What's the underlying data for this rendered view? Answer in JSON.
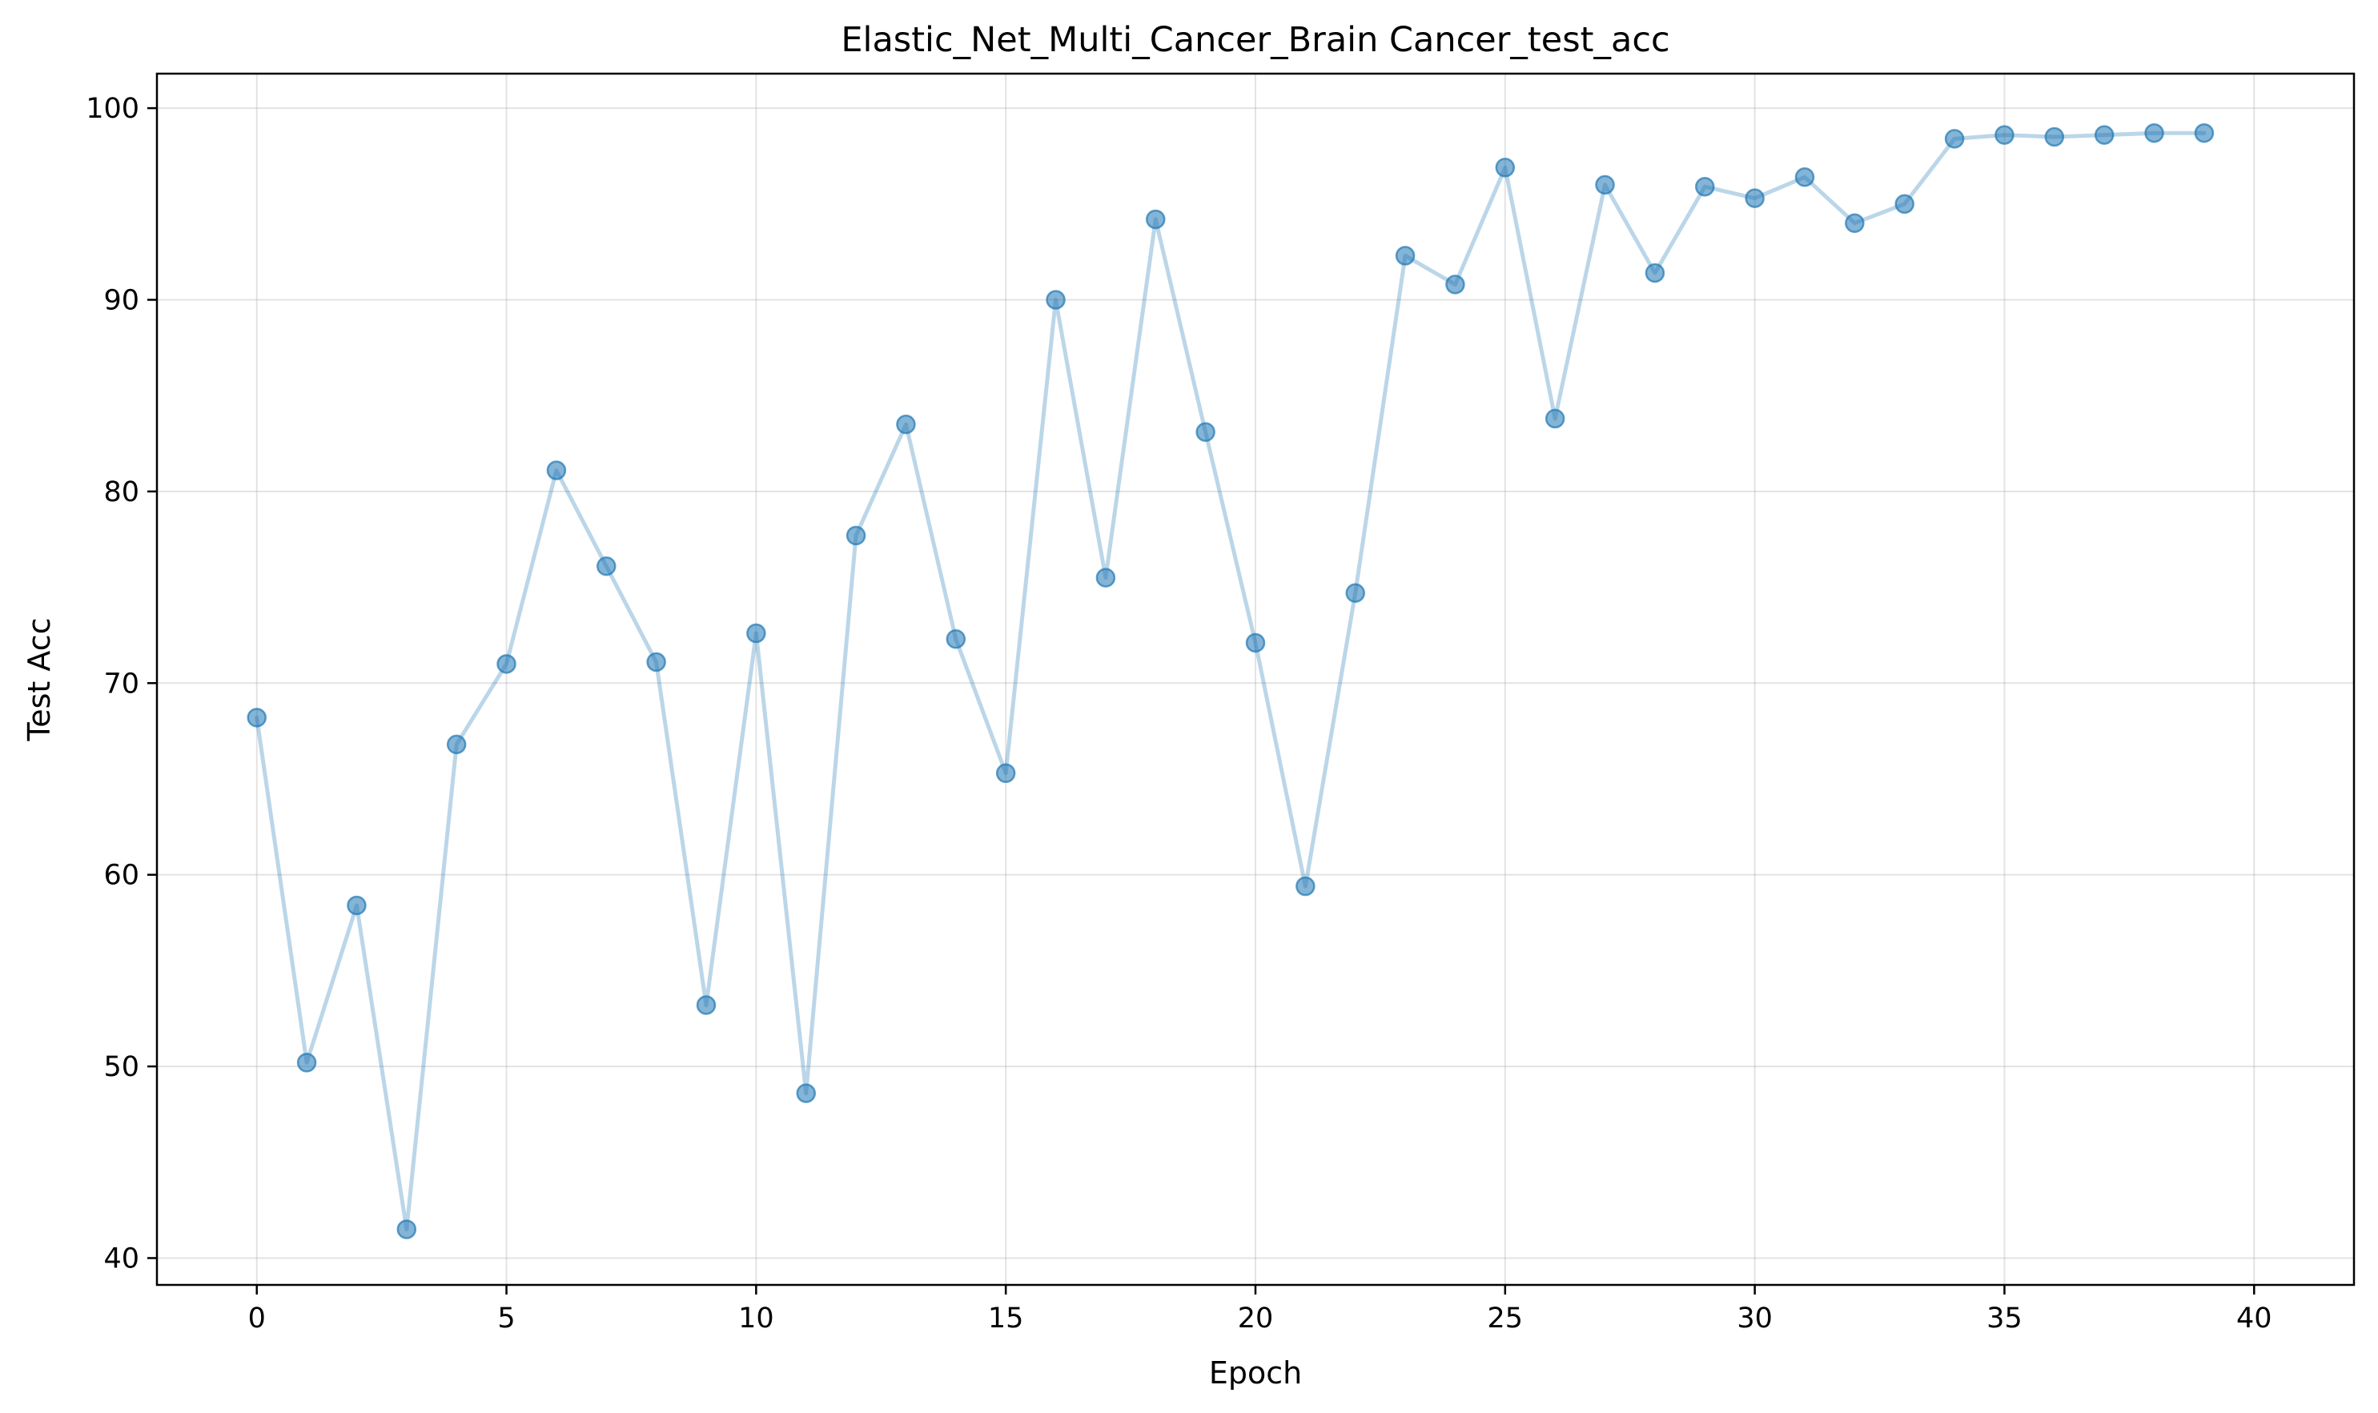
{
  "chart_data": {
    "type": "line",
    "title": "Elastic_Net_Multi_Cancer_Brain Cancer_test_acc",
    "xlabel": "Epoch",
    "ylabel": "Test Acc",
    "xlim": [
      -2,
      42
    ],
    "ylim": [
      38.6,
      101.8
    ],
    "xticks": [
      0,
      5,
      10,
      15,
      20,
      25,
      30,
      35,
      40
    ],
    "yticks": [
      40,
      50,
      60,
      70,
      80,
      90,
      100
    ],
    "grid": true,
    "legend": "none",
    "colors": {
      "line": "#1f77b4",
      "line_alpha": 0.3,
      "marker": "#1f77b4",
      "marker_alpha": 0.55
    },
    "series": [
      {
        "x": [
          0,
          1,
          2,
          3,
          4,
          5,
          6,
          7,
          8,
          9,
          10,
          11,
          12,
          13,
          14,
          15,
          16,
          17,
          18,
          19,
          20,
          21,
          22,
          23,
          24,
          25,
          26,
          27,
          28,
          29,
          30,
          31,
          32,
          33,
          34,
          35,
          36,
          37,
          38,
          39
        ],
        "values": [
          68.2,
          50.2,
          58.4,
          41.5,
          66.8,
          71.0,
          81.1,
          76.1,
          71.1,
          53.2,
          72.6,
          48.6,
          77.7,
          83.5,
          72.3,
          65.3,
          90.0,
          75.5,
          94.2,
          83.1,
          72.1,
          59.4,
          74.7,
          92.3,
          90.8,
          96.9,
          83.8,
          96.0,
          91.4,
          95.9,
          95.3,
          96.4,
          94.0,
          95.0,
          98.4,
          98.6,
          98.5,
          98.6,
          98.7,
          98.7
        ]
      }
    ]
  }
}
